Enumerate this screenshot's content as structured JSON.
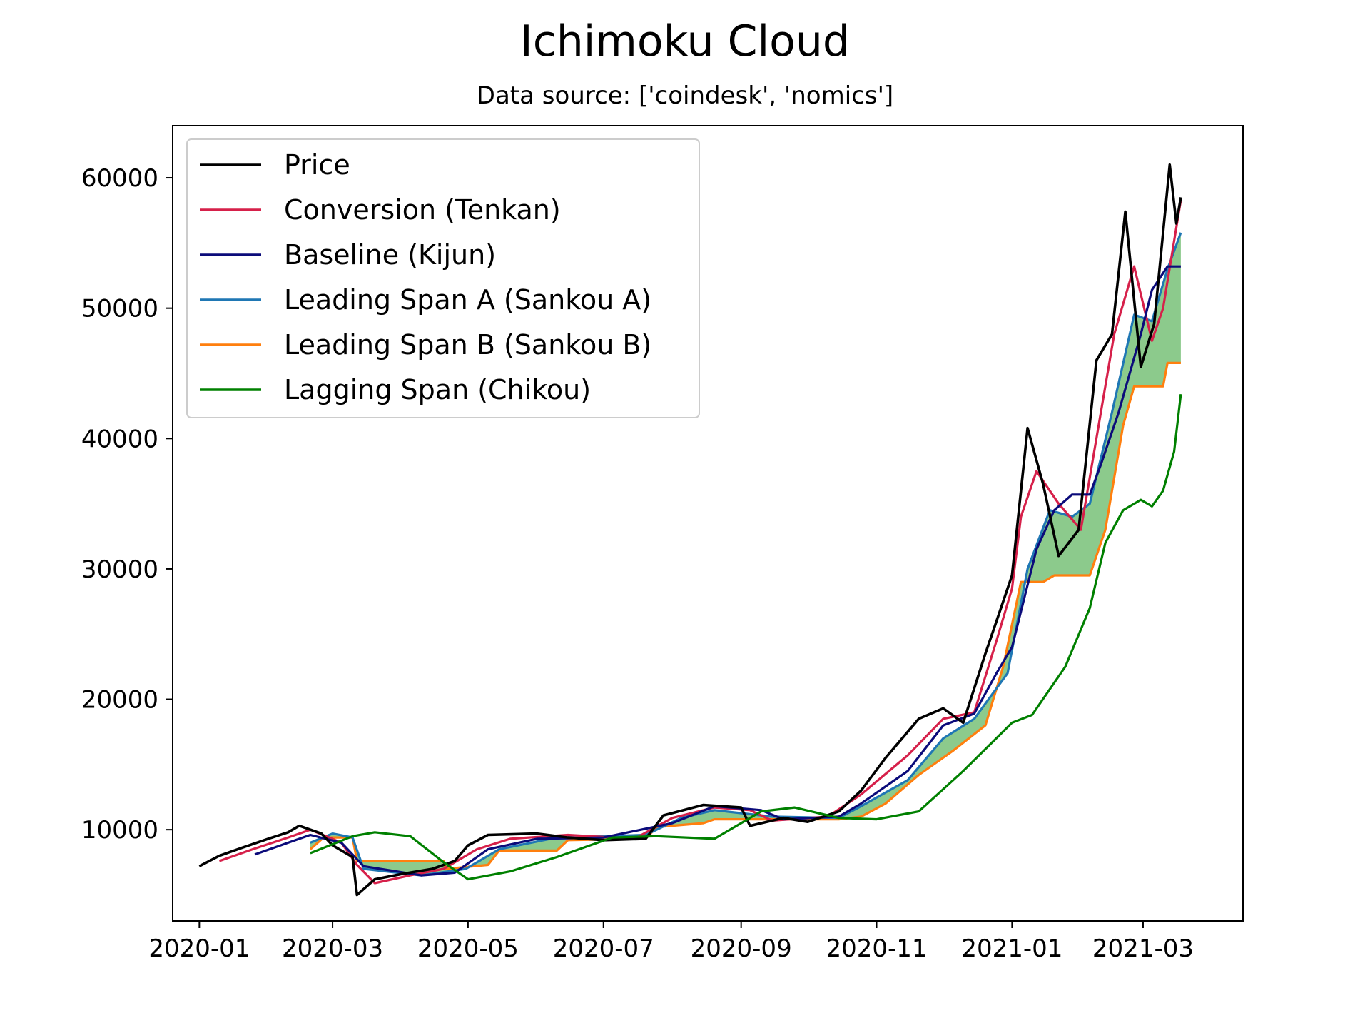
{
  "chart_data": {
    "type": "line",
    "title": "Ichimoku Cloud",
    "subtitle": "Data source: ['coindesk', 'nomics']",
    "xlabel": "",
    "ylabel": "",
    "x_range": [
      "2019-12-20",
      "2021-04-15"
    ],
    "ylim": [
      3000,
      64000
    ],
    "x_ticks": [
      "2020-01",
      "2020-03",
      "2020-05",
      "2020-07",
      "2020-09",
      "2020-11",
      "2021-01",
      "2021-03"
    ],
    "y_ticks": [
      10000,
      20000,
      30000,
      40000,
      50000,
      60000
    ],
    "legend_position": "top-left",
    "grid": false,
    "cloud_fill_color": "#7fc47f",
    "series": [
      {
        "name": "Price",
        "color": "#000000",
        "points": [
          [
            "2020-01-01",
            7200
          ],
          [
            "2020-01-10",
            8000
          ],
          [
            "2020-01-20",
            8600
          ],
          [
            "2020-02-01",
            9300
          ],
          [
            "2020-02-10",
            9800
          ],
          [
            "2020-02-15",
            10300
          ],
          [
            "2020-02-25",
            9700
          ],
          [
            "2020-03-01",
            8800
          ],
          [
            "2020-03-10",
            7900
          ],
          [
            "2020-03-12",
            5000
          ],
          [
            "2020-03-20",
            6200
          ],
          [
            "2020-04-01",
            6600
          ],
          [
            "2020-04-15",
            7000
          ],
          [
            "2020-04-25",
            7600
          ],
          [
            "2020-05-01",
            8800
          ],
          [
            "2020-05-10",
            9600
          ],
          [
            "2020-06-01",
            9700
          ],
          [
            "2020-06-15",
            9400
          ],
          [
            "2020-07-01",
            9200
          ],
          [
            "2020-07-20",
            9300
          ],
          [
            "2020-07-28",
            11100
          ],
          [
            "2020-08-15",
            11900
          ],
          [
            "2020-09-01",
            11700
          ],
          [
            "2020-09-05",
            10300
          ],
          [
            "2020-09-20",
            10900
          ],
          [
            "2020-10-01",
            10600
          ],
          [
            "2020-10-15",
            11400
          ],
          [
            "2020-10-25",
            13000
          ],
          [
            "2020-11-05",
            15500
          ],
          [
            "2020-11-20",
            18500
          ],
          [
            "2020-12-01",
            19300
          ],
          [
            "2020-12-10",
            18200
          ],
          [
            "2020-12-20",
            23500
          ],
          [
            "2020-12-27",
            27000
          ],
          [
            "2021-01-01",
            29500
          ],
          [
            "2021-01-08",
            40800
          ],
          [
            "2021-01-15",
            36500
          ],
          [
            "2021-01-22",
            31000
          ],
          [
            "2021-01-31",
            33000
          ],
          [
            "2021-02-08",
            46000
          ],
          [
            "2021-02-15",
            48000
          ],
          [
            "2021-02-21",
            57400
          ],
          [
            "2021-02-28",
            45500
          ],
          [
            "2021-03-06",
            48800
          ],
          [
            "2021-03-13",
            61000
          ],
          [
            "2021-03-16",
            56500
          ],
          [
            "2021-03-18",
            58500
          ]
        ]
      },
      {
        "name": "Conversion (Tenkan)",
        "color": "#d6204a",
        "points": [
          [
            "2020-01-10",
            7600
          ],
          [
            "2020-01-25",
            8500
          ],
          [
            "2020-02-10",
            9400
          ],
          [
            "2020-02-20",
            10000
          ],
          [
            "2020-03-05",
            9000
          ],
          [
            "2020-03-12",
            7300
          ],
          [
            "2020-03-20",
            5900
          ],
          [
            "2020-04-05",
            6500
          ],
          [
            "2020-04-20",
            7000
          ],
          [
            "2020-05-05",
            8500
          ],
          [
            "2020-05-20",
            9300
          ],
          [
            "2020-06-15",
            9600
          ],
          [
            "2020-07-15",
            9300
          ],
          [
            "2020-08-01",
            10900
          ],
          [
            "2020-08-20",
            11700
          ],
          [
            "2020-09-05",
            11500
          ],
          [
            "2020-09-15",
            10700
          ],
          [
            "2020-10-10",
            11000
          ],
          [
            "2020-10-25",
            12700
          ],
          [
            "2020-11-15",
            15700
          ],
          [
            "2020-12-01",
            18500
          ],
          [
            "2020-12-15",
            19000
          ],
          [
            "2020-12-25",
            24500
          ],
          [
            "2021-01-01",
            28500
          ],
          [
            "2021-01-05",
            34000
          ],
          [
            "2021-01-12",
            37500
          ],
          [
            "2021-01-22",
            35000
          ],
          [
            "2021-02-01",
            33000
          ],
          [
            "2021-02-10",
            42000
          ],
          [
            "2021-02-16",
            48000
          ],
          [
            "2021-02-25",
            53200
          ],
          [
            "2021-03-05",
            47500
          ],
          [
            "2021-03-10",
            50000
          ],
          [
            "2021-03-18",
            58300
          ]
        ]
      },
      {
        "name": "Baseline (Kijun)",
        "color": "#0b0b7a",
        "points": [
          [
            "2020-01-26",
            8100
          ],
          [
            "2020-02-10",
            9000
          ],
          [
            "2020-02-20",
            9600
          ],
          [
            "2020-03-05",
            9000
          ],
          [
            "2020-03-15",
            7200
          ],
          [
            "2020-04-10",
            6500
          ],
          [
            "2020-04-25",
            6700
          ],
          [
            "2020-05-10",
            8500
          ],
          [
            "2020-06-01",
            9300
          ],
          [
            "2020-07-01",
            9400
          ],
          [
            "2020-08-01",
            10500
          ],
          [
            "2020-08-20",
            11800
          ],
          [
            "2020-09-10",
            11500
          ],
          [
            "2020-09-20",
            10800
          ],
          [
            "2020-10-15",
            11000
          ],
          [
            "2020-10-25",
            12000
          ],
          [
            "2020-11-15",
            14500
          ],
          [
            "2020-12-01",
            18000
          ],
          [
            "2020-12-15",
            18900
          ],
          [
            "2020-12-25",
            22000
          ],
          [
            "2021-01-01",
            24000
          ],
          [
            "2021-01-12",
            31500
          ],
          [
            "2021-01-20",
            34500
          ],
          [
            "2021-01-28",
            35700
          ],
          [
            "2021-02-05",
            35700
          ],
          [
            "2021-02-10",
            38000
          ],
          [
            "2021-02-18",
            42000
          ],
          [
            "2021-02-28",
            48000
          ],
          [
            "2021-03-05",
            51400
          ],
          [
            "2021-03-12",
            53200
          ],
          [
            "2021-03-18",
            53200
          ]
        ]
      },
      {
        "name": "Leading Span A (Sankou A)",
        "color": "#1f77b4",
        "points": [
          [
            "2020-02-20",
            9000
          ],
          [
            "2020-03-01",
            9700
          ],
          [
            "2020-03-10",
            9400
          ],
          [
            "2020-03-15",
            7000
          ],
          [
            "2020-04-10",
            6500
          ],
          [
            "2020-04-30",
            7000
          ],
          [
            "2020-05-15",
            8500
          ],
          [
            "2020-06-10",
            9400
          ],
          [
            "2020-07-01",
            9500
          ],
          [
            "2020-07-20",
            9600
          ],
          [
            "2020-08-05",
            10900
          ],
          [
            "2020-08-20",
            11500
          ],
          [
            "2020-09-15",
            11000
          ],
          [
            "2020-10-15",
            10900
          ],
          [
            "2020-10-25",
            11800
          ],
          [
            "2020-11-15",
            13800
          ],
          [
            "2020-12-01",
            17000
          ],
          [
            "2020-12-15",
            18500
          ],
          [
            "2020-12-30",
            22000
          ],
          [
            "2021-01-08",
            30000
          ],
          [
            "2021-01-18",
            34500
          ],
          [
            "2021-01-28",
            34000
          ],
          [
            "2021-02-05",
            35000
          ],
          [
            "2021-02-15",
            42000
          ],
          [
            "2021-02-25",
            49500
          ],
          [
            "2021-03-05",
            49000
          ],
          [
            "2021-03-12",
            53000
          ],
          [
            "2021-03-18",
            55800
          ]
        ]
      },
      {
        "name": "Leading Span B (Sankou B)",
        "color": "#ff7f0e",
        "points": [
          [
            "2020-02-20",
            8500
          ],
          [
            "2020-02-26",
            9400
          ],
          [
            "2020-03-10",
            9400
          ],
          [
            "2020-03-12",
            7600
          ],
          [
            "2020-04-20",
            7600
          ],
          [
            "2020-04-21",
            7000
          ],
          [
            "2020-05-10",
            7300
          ],
          [
            "2020-05-15",
            8400
          ],
          [
            "2020-06-10",
            8400
          ],
          [
            "2020-06-15",
            9200
          ],
          [
            "2020-07-20",
            9300
          ],
          [
            "2020-07-25",
            10200
          ],
          [
            "2020-08-15",
            10500
          ],
          [
            "2020-08-20",
            10800
          ],
          [
            "2020-10-15",
            10800
          ],
          [
            "2020-10-25",
            11000
          ],
          [
            "2020-11-05",
            12000
          ],
          [
            "2020-11-20",
            14200
          ],
          [
            "2020-12-05",
            16000
          ],
          [
            "2020-12-20",
            18000
          ],
          [
            "2020-12-28",
            22500
          ],
          [
            "2021-01-05",
            29000
          ],
          [
            "2021-01-15",
            29000
          ],
          [
            "2021-01-20",
            29500
          ],
          [
            "2021-02-05",
            29500
          ],
          [
            "2021-02-12",
            33000
          ],
          [
            "2021-02-20",
            41000
          ],
          [
            "2021-02-25",
            44000
          ],
          [
            "2021-03-10",
            44000
          ],
          [
            "2021-03-12",
            45800
          ],
          [
            "2021-03-18",
            45800
          ]
        ]
      },
      {
        "name": "Lagging Span (Chikou)",
        "color": "#008000",
        "points": [
          [
            "2020-02-20",
            8200
          ],
          [
            "2020-03-10",
            9500
          ],
          [
            "2020-03-20",
            9800
          ],
          [
            "2020-04-05",
            9500
          ],
          [
            "2020-04-20",
            7500
          ],
          [
            "2020-05-01",
            6200
          ],
          [
            "2020-05-20",
            6800
          ],
          [
            "2020-06-10",
            7900
          ],
          [
            "2020-07-05",
            9400
          ],
          [
            "2020-07-25",
            9500
          ],
          [
            "2020-08-20",
            9300
          ],
          [
            "2020-09-10",
            11400
          ],
          [
            "2020-09-25",
            11700
          ],
          [
            "2020-10-15",
            10900
          ],
          [
            "2020-11-01",
            10800
          ],
          [
            "2020-11-20",
            11400
          ],
          [
            "2020-12-10",
            14500
          ],
          [
            "2021-01-01",
            18200
          ],
          [
            "2021-01-10",
            18800
          ],
          [
            "2021-01-25",
            22500
          ],
          [
            "2021-02-05",
            27000
          ],
          [
            "2021-02-12",
            32000
          ],
          [
            "2021-02-20",
            34500
          ],
          [
            "2021-02-28",
            35300
          ],
          [
            "2021-03-05",
            34800
          ],
          [
            "2021-03-10",
            36000
          ],
          [
            "2021-03-15",
            39000
          ],
          [
            "2021-03-18",
            43400
          ]
        ]
      }
    ]
  }
}
